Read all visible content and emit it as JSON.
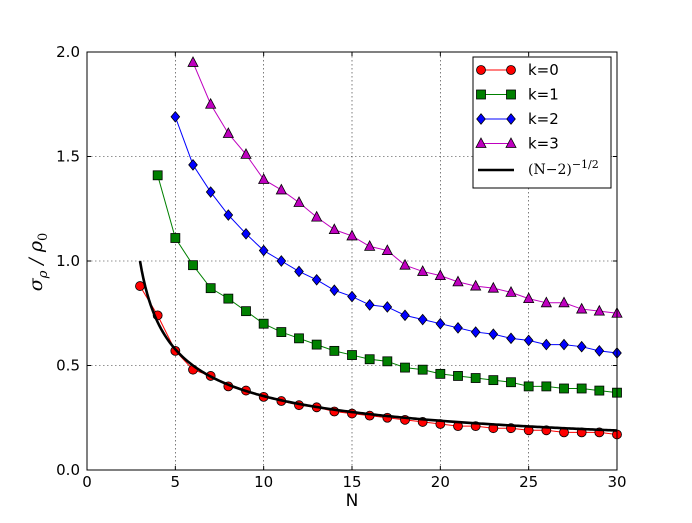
{
  "chart_data": {
    "type": "line",
    "title": "",
    "xlabel": "N",
    "ylabel": "σρ/ρ0",
    "xlim": [
      0,
      30
    ],
    "ylim": [
      0.0,
      2.0
    ],
    "xticks": [
      "0",
      "5",
      "10",
      "15",
      "20",
      "25",
      "30"
    ],
    "yticks": [
      "0.0",
      "0.5",
      "1.0",
      "1.5",
      "2.0"
    ],
    "grid": true,
    "legend_position": "top-right",
    "series": [
      {
        "name": "k=0",
        "color": "#ff0000",
        "marker": "circle",
        "x": [
          3,
          4,
          5,
          6,
          7,
          8,
          9,
          10,
          11,
          12,
          13,
          14,
          15,
          16,
          17,
          18,
          19,
          20,
          21,
          22,
          23,
          24,
          25,
          26,
          27,
          28,
          29,
          30
        ],
        "y": [
          0.88,
          0.74,
          0.57,
          0.48,
          0.45,
          0.4,
          0.38,
          0.35,
          0.33,
          0.31,
          0.3,
          0.28,
          0.27,
          0.26,
          0.25,
          0.24,
          0.23,
          0.22,
          0.21,
          0.21,
          0.2,
          0.2,
          0.19,
          0.19,
          0.18,
          0.18,
          0.18,
          0.17
        ]
      },
      {
        "name": "k=1",
        "color": "#008000",
        "marker": "square",
        "x": [
          4,
          5,
          6,
          7,
          8,
          9,
          10,
          11,
          12,
          13,
          14,
          15,
          16,
          17,
          18,
          19,
          20,
          21,
          22,
          23,
          24,
          25,
          26,
          27,
          28,
          29,
          30
        ],
        "y": [
          1.41,
          1.11,
          0.98,
          0.87,
          0.82,
          0.76,
          0.7,
          0.66,
          0.63,
          0.6,
          0.57,
          0.55,
          0.53,
          0.52,
          0.49,
          0.48,
          0.46,
          0.45,
          0.44,
          0.43,
          0.42,
          0.4,
          0.4,
          0.39,
          0.39,
          0.38,
          0.37
        ]
      },
      {
        "name": "k=2",
        "color": "#0000ff",
        "marker": "diamond",
        "x": [
          5,
          6,
          7,
          8,
          9,
          10,
          11,
          12,
          13,
          14,
          15,
          16,
          17,
          18,
          19,
          20,
          21,
          22,
          23,
          24,
          25,
          26,
          27,
          28,
          29,
          30
        ],
        "y": [
          1.69,
          1.46,
          1.33,
          1.22,
          1.13,
          1.05,
          1.0,
          0.95,
          0.91,
          0.86,
          0.83,
          0.79,
          0.78,
          0.74,
          0.72,
          0.7,
          0.68,
          0.66,
          0.65,
          0.63,
          0.62,
          0.6,
          0.6,
          0.59,
          0.57,
          0.56
        ]
      },
      {
        "name": "k=3",
        "color": "#bf00bf",
        "marker": "triangle",
        "x": [
          6,
          7,
          8,
          9,
          10,
          11,
          12,
          13,
          14,
          15,
          16,
          17,
          18,
          19,
          20,
          21,
          22,
          23,
          24,
          25,
          26,
          27,
          28,
          29,
          30
        ],
        "y": [
          1.95,
          1.75,
          1.61,
          1.51,
          1.39,
          1.34,
          1.28,
          1.21,
          1.15,
          1.12,
          1.07,
          1.05,
          0.98,
          0.95,
          0.93,
          0.9,
          0.88,
          0.87,
          0.85,
          0.82,
          0.8,
          0.8,
          0.77,
          0.76,
          0.75
        ]
      },
      {
        "name": "(N−2)",
        "name_exponent": "−1/2",
        "color": "#000000",
        "marker": "none",
        "formula": "(N-2)^(-1/2)",
        "x_range": [
          3,
          30
        ]
      }
    ]
  }
}
